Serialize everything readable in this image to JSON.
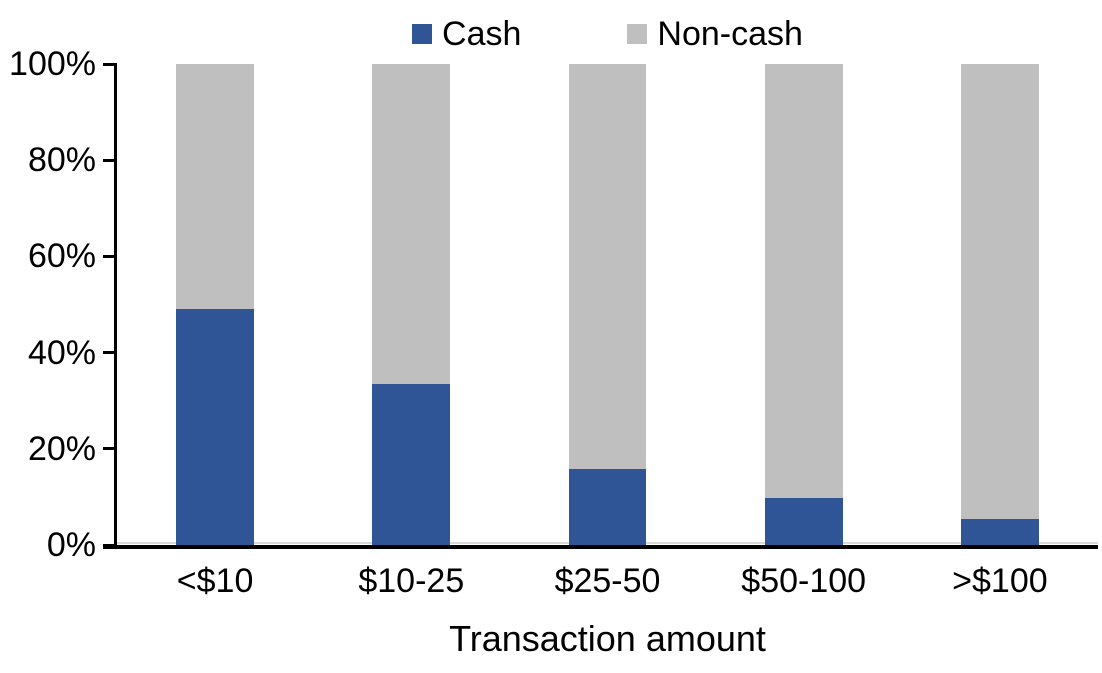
{
  "chart_data": {
    "type": "bar",
    "variant": "stacked-100",
    "title": "",
    "xlabel": "Transaction amount",
    "ylabel": "",
    "ylim": [
      0,
      100
    ],
    "ytick_step": 20,
    "ytick_labels_top_to_bottom": [
      "100%",
      "80%",
      "60%",
      "40%",
      "20%",
      "0%"
    ],
    "categories": [
      "<$10",
      "$10-25",
      "$25-50",
      "$50-100",
      ">$100"
    ],
    "series": [
      {
        "name": "Cash",
        "color": "#2F5597",
        "values": [
          49,
          33.5,
          15.7,
          9.7,
          5.5
        ]
      },
      {
        "name": "Non-cash",
        "color": "#BFBFBF",
        "values": [
          51,
          66.5,
          84.3,
          90.3,
          94.5
        ]
      }
    ],
    "legend_position": "top-center",
    "grid": false,
    "axis_color": "#000000",
    "background_color": "#FFFFFF"
  }
}
